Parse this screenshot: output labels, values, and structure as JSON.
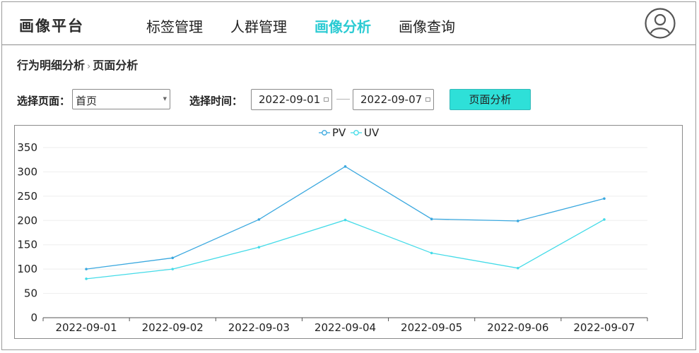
{
  "header": {
    "logo": "画像平台",
    "nav": [
      {
        "label": "标签管理",
        "active": false
      },
      {
        "label": "人群管理",
        "active": false
      },
      {
        "label": "画像分析",
        "active": true
      },
      {
        "label": "画像查询",
        "active": false
      }
    ],
    "avatar_icon": "user-circle-icon",
    "accent_color": "#2ccbd3"
  },
  "breadcrumb": {
    "parent": "行为明细分析",
    "separator": "›",
    "current": "页面分析"
  },
  "filters": {
    "page_label": "选择页面：",
    "page_value": "首页",
    "time_label": "选择时间：",
    "start_date": "2022-09-01",
    "end_date": "2022-09-07",
    "submit_label": "页面分析",
    "button_color": "#2ee0d8"
  },
  "chart_data": {
    "type": "line",
    "categories": [
      "2022-09-01",
      "2022-09-02",
      "2022-09-03",
      "2022-09-04",
      "2022-09-05",
      "2022-09-06",
      "2022-09-07"
    ],
    "series": [
      {
        "name": "PV",
        "values": [
          100,
          123,
          202,
          311,
          203,
          199,
          245
        ],
        "color": "#3aa8df"
      },
      {
        "name": "UV",
        "values": [
          80,
          100,
          145,
          201,
          133,
          102,
          202
        ],
        "color": "#44dbe8"
      }
    ],
    "ylim": [
      0,
      350
    ],
    "yticks": [
      0,
      50,
      100,
      150,
      200,
      250,
      300,
      350
    ],
    "legend": "top-center",
    "grid": true
  }
}
